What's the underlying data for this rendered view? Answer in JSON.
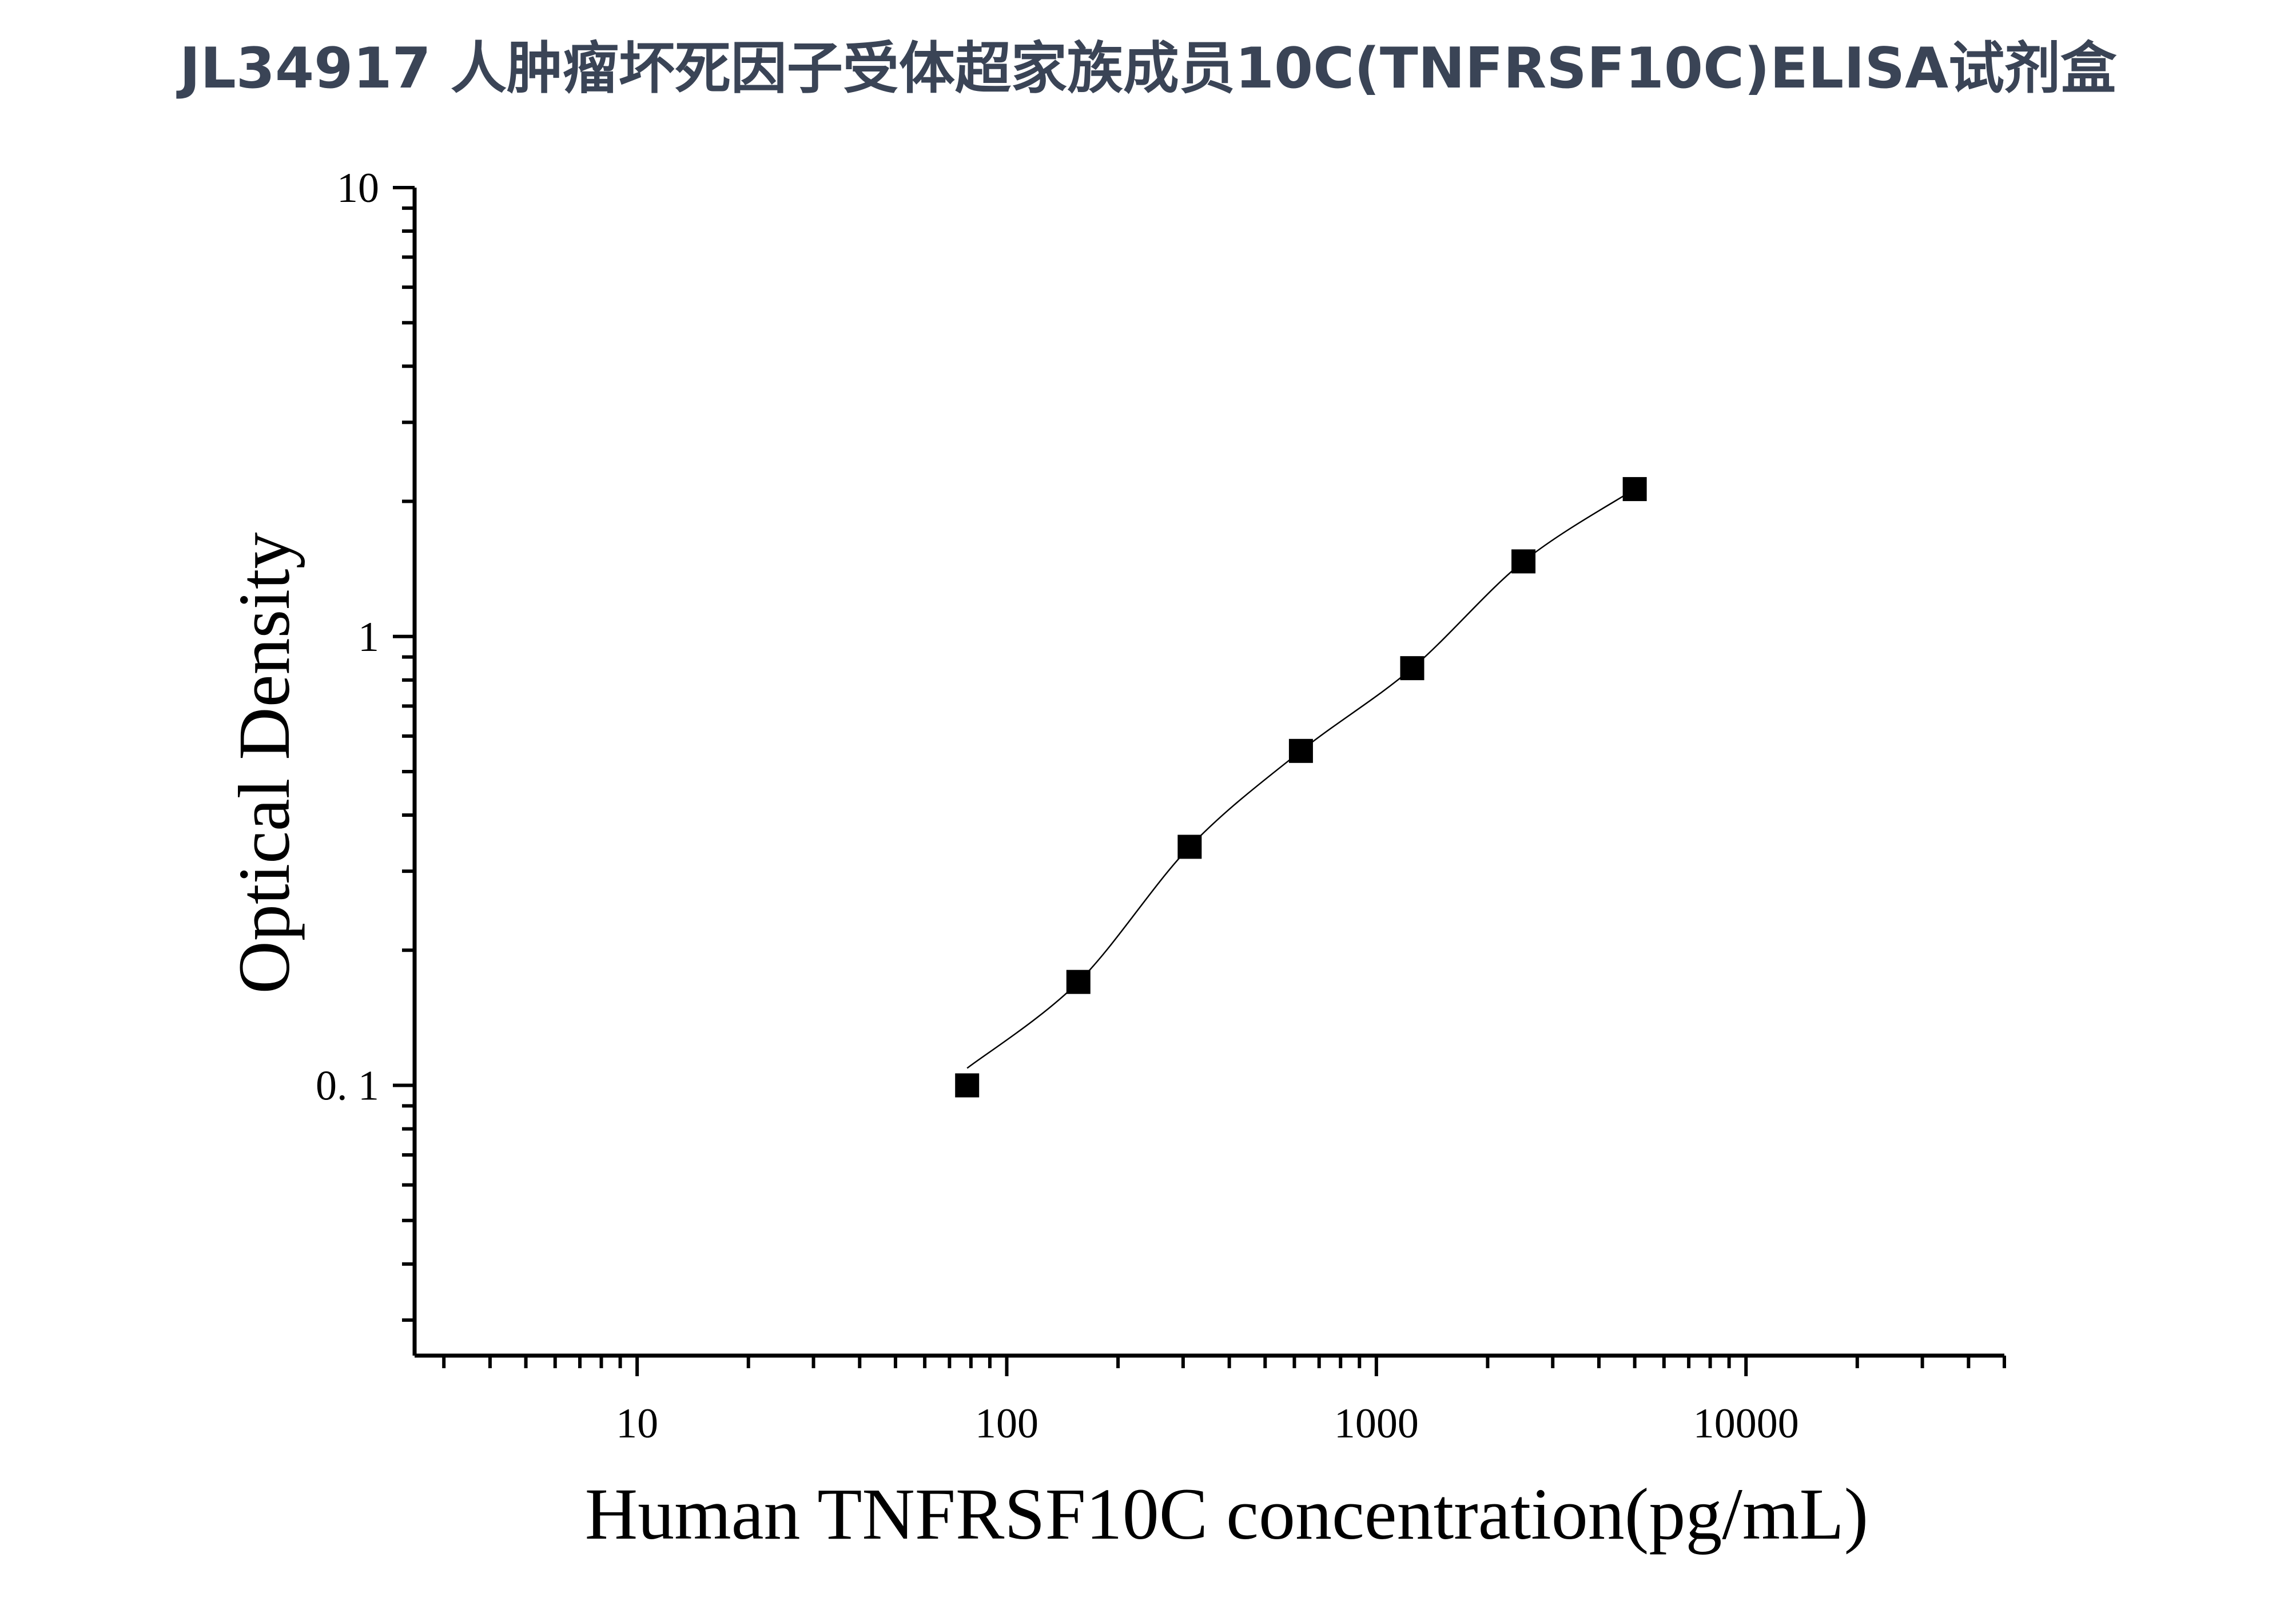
{
  "title": "JL34917 人肿瘤坏死因子受体超家族成员10C(TNFRSF10C)ELISA试剂盒",
  "chart_data": {
    "type": "scatter",
    "title": "JL34917 人肿瘤坏死因子受体超家族成员10C(TNFRSF10C)ELISA试剂盒",
    "xlabel": "Human TNFRSF10C concentration(pg/mL)",
    "ylabel": "Optical Density",
    "xscale": "log",
    "yscale": "log",
    "xlim": [
      2.5,
      50000
    ],
    "ylim": [
      0.025,
      10
    ],
    "x_ticks": [
      {
        "value": 10,
        "label": "10"
      },
      {
        "value": 100,
        "label": "100"
      },
      {
        "value": 1000,
        "label": "1000"
      },
      {
        "value": 10000,
        "label": "10000"
      }
    ],
    "y_ticks": [
      {
        "value": 0.1,
        "label": "0. 1"
      },
      {
        "value": 1,
        "label": "1"
      },
      {
        "value": 10,
        "label": "10"
      }
    ],
    "grid": false,
    "legend": "none",
    "marker": "square",
    "marker_color": "#000000",
    "line_color": "#000000",
    "series": [
      {
        "x": [
          78.125,
          156.25,
          312.5,
          625,
          1250,
          2500,
          5000
        ],
        "y": [
          0.1,
          0.17,
          0.34,
          0.556,
          0.85,
          1.47,
          2.13
        ]
      }
    ]
  }
}
